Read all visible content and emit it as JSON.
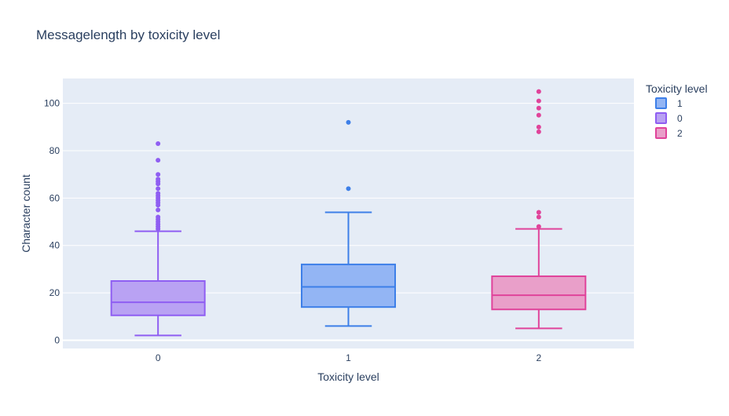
{
  "chart_data": {
    "type": "box",
    "title": "Messagelength by toxicity level",
    "xlabel": "Toxicity level",
    "ylabel": "Character count",
    "categories": [
      "0",
      "1",
      "2"
    ],
    "yticks": [
      0,
      20,
      40,
      60,
      80,
      100
    ],
    "ylim": [
      -3.5,
      110.5
    ],
    "grid": true,
    "legend": {
      "title": "Toxicity level",
      "placement": "top-right",
      "order": [
        "1",
        "0",
        "2"
      ]
    },
    "series": [
      {
        "name": "0",
        "category": "0",
        "color": "#8f5ef2",
        "fill": "#b9a2f3",
        "whisker_low": 2,
        "q1": 10.5,
        "median": 16,
        "q3": 25,
        "whisker_high": 46,
        "outliers": [
          47,
          48,
          49,
          50,
          51,
          52,
          55,
          57,
          58,
          59,
          60,
          61,
          62,
          64,
          66,
          67,
          68,
          70,
          76,
          83
        ]
      },
      {
        "name": "1",
        "category": "1",
        "color": "#3d7fe8",
        "fill": "#93b5f4",
        "whisker_low": 6,
        "q1": 14,
        "median": 22.5,
        "q3": 32,
        "whisker_high": 54,
        "outliers": [
          64,
          92
        ]
      },
      {
        "name": "2",
        "category": "2",
        "color": "#e0439a",
        "fill": "#e99fc9",
        "whisker_low": 5,
        "q1": 13,
        "median": 19,
        "q3": 27,
        "whisker_high": 47,
        "outliers": [
          48,
          52,
          54,
          88,
          90,
          95,
          98,
          101,
          105
        ]
      }
    ]
  }
}
